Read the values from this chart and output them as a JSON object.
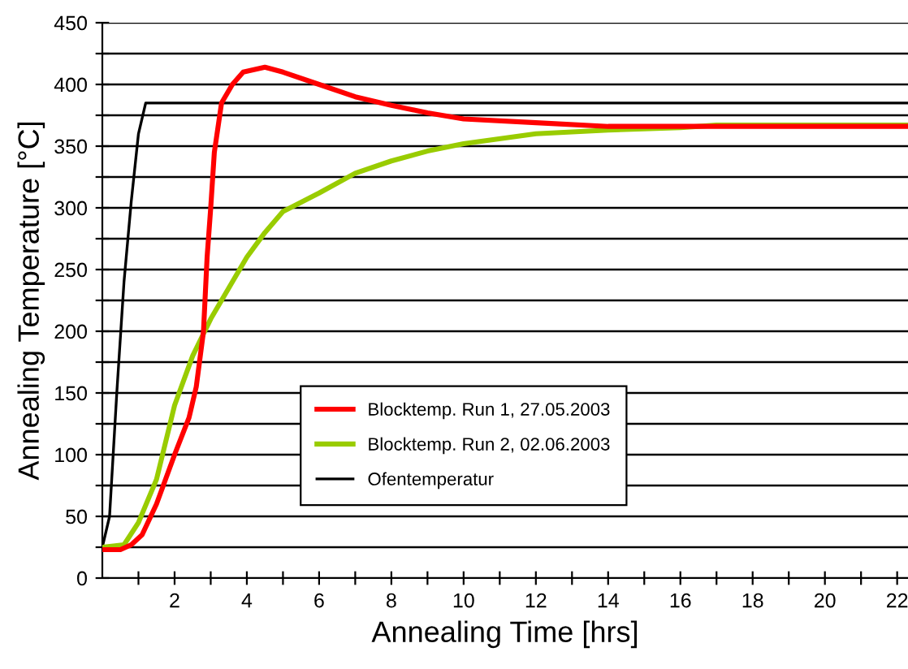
{
  "chart_data": {
    "type": "line",
    "xlabel": "Annealing Time [hrs]",
    "ylabel": "Annealing Temperature [°C]",
    "xlim": [
      0,
      22.3
    ],
    "ylim": [
      0,
      450
    ],
    "xticks": [
      {
        "value": 1,
        "label": null
      },
      2,
      {
        "value": 3,
        "label": null
      },
      4,
      {
        "value": 5,
        "label": null
      },
      6,
      {
        "value": 7,
        "label": null
      },
      8,
      {
        "value": 9,
        "label": null
      },
      10,
      {
        "value": 11,
        "label": null
      },
      12,
      {
        "value": 13,
        "label": null
      },
      14,
      {
        "value": 15,
        "label": null
      },
      16,
      {
        "value": 17,
        "label": null
      },
      18,
      {
        "value": 19,
        "label": null
      },
      20,
      {
        "value": 21,
        "label": null
      },
      22
    ],
    "yticks": [
      0,
      {
        "value": 25,
        "label": null
      },
      50,
      {
        "value": 75,
        "label": null
      },
      100,
      {
        "value": 125,
        "label": null
      },
      150,
      {
        "value": 175,
        "label": null
      },
      200,
      {
        "value": 225,
        "label": null
      },
      250,
      {
        "value": 275,
        "label": null
      },
      300,
      {
        "value": 325,
        "label": null
      },
      350,
      {
        "value": 375,
        "label": null
      },
      400,
      {
        "value": 425,
        "label": null
      },
      450
    ],
    "grid": "y",
    "legend": "bottom",
    "marker": "none",
    "line_style": "solid",
    "series": [
      {
        "name": "Blocktemp. Run 1, 27.05.2003",
        "color": "#ff0000",
        "x": [
          0,
          0.5,
          0.8,
          1.1,
          1.5,
          2,
          2.4,
          2.6,
          2.8,
          2.9,
          3.0,
          3.1,
          3.3,
          3.6,
          3.9,
          4.5,
          5,
          6,
          7,
          8,
          9,
          10,
          12,
          14,
          16,
          22.3
        ],
        "values": [
          23,
          23,
          27,
          35,
          60,
          100,
          130,
          155,
          200,
          260,
          300,
          345,
          385,
          400,
          410,
          414,
          410,
          400,
          390,
          383,
          377,
          372,
          369,
          366,
          366,
          366
        ]
      },
      {
        "name": "Blocktemp. Run 2, 02.06.2003",
        "color": "#99cc00",
        "x": [
          0,
          0.6,
          1,
          1.5,
          2,
          2.5,
          3,
          3.5,
          4,
          4.5,
          5,
          6,
          7,
          8,
          9,
          10,
          12,
          14,
          16,
          17,
          22.3
        ],
        "values": [
          25,
          27,
          45,
          80,
          140,
          180,
          210,
          235,
          260,
          280,
          297,
          312,
          328,
          338,
          346,
          352,
          360,
          363,
          365,
          367,
          367
        ]
      },
      {
        "name": "Ofentemperatur",
        "color": "#000000",
        "x": [
          0,
          0.2,
          0.4,
          0.6,
          0.8,
          1.0,
          1.2,
          22.3
        ],
        "values": [
          25,
          50,
          150,
          240,
          305,
          360,
          385,
          385
        ]
      }
    ]
  }
}
